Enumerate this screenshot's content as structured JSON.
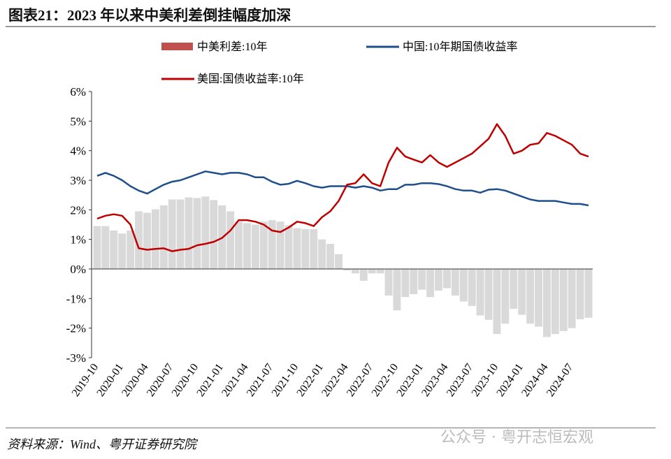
{
  "title": "图表21：2023 年以来中美利差倒挂幅度加深",
  "source": "资料来源：Wind、粤开证券研究院",
  "watermark": "公众号 · 粤开志恒宏观",
  "chart_data": {
    "type": "line+bar",
    "title": "",
    "ylim": [
      -3,
      6
    ],
    "yticks": [
      "6%",
      "5%",
      "4%",
      "3%",
      "2%",
      "1%",
      "0%",
      "-1%",
      "-2%",
      "-3%"
    ],
    "xticks": [
      "2019-10",
      "2020-01",
      "2020-04",
      "2020-07",
      "2020-10",
      "2021-01",
      "2021-04",
      "2021-07",
      "2021-10",
      "2022-01",
      "2022-04",
      "2022-07",
      "2022-10",
      "2023-01",
      "2023-04",
      "2023-07",
      "2023-10",
      "2024-01",
      "2024-04",
      "2024-07"
    ],
    "legend_position": "top",
    "x_start": "2019-10",
    "x_end": "2024-09",
    "x_step": "month",
    "series": [
      {
        "name": "中美利差:10年",
        "type": "bar",
        "color": "#c0504d",
        "draw_color": "#d9d9d9",
        "values": [
          1.45,
          1.45,
          1.3,
          1.2,
          1.3,
          1.95,
          1.9,
          2.02,
          2.15,
          2.35,
          2.35,
          2.42,
          2.4,
          2.45,
          2.33,
          2.15,
          1.95,
          1.6,
          1.55,
          1.5,
          1.6,
          1.65,
          1.6,
          1.48,
          1.38,
          1.35,
          1.35,
          1.0,
          0.85,
          0.5,
          -0.05,
          -0.15,
          -0.4,
          -0.15,
          -0.15,
          -0.9,
          -1.4,
          -0.95,
          -0.85,
          -0.7,
          -0.95,
          -0.73,
          -0.65,
          -0.9,
          -1.1,
          -1.25,
          -1.57,
          -1.72,
          -2.2,
          -1.85,
          -1.35,
          -1.55,
          -1.85,
          -1.95,
          -2.3,
          -2.2,
          -2.1,
          -2.0,
          -1.7,
          -1.65
        ]
      },
      {
        "name": "中国:10年期国债收益率",
        "type": "line",
        "color": "#1f4e8c",
        "values": [
          3.15,
          3.25,
          3.15,
          3.0,
          2.8,
          2.65,
          2.55,
          2.7,
          2.85,
          2.95,
          3.0,
          3.1,
          3.2,
          3.3,
          3.25,
          3.2,
          3.25,
          3.25,
          3.2,
          3.1,
          3.1,
          2.95,
          2.85,
          2.88,
          2.98,
          2.9,
          2.8,
          2.75,
          2.8,
          2.8,
          2.8,
          2.75,
          2.8,
          2.75,
          2.65,
          2.7,
          2.7,
          2.85,
          2.85,
          2.9,
          2.9,
          2.87,
          2.8,
          2.7,
          2.65,
          2.65,
          2.58,
          2.68,
          2.7,
          2.65,
          2.55,
          2.45,
          2.35,
          2.3,
          2.3,
          2.3,
          2.25,
          2.2,
          2.2,
          2.15
        ]
      },
      {
        "name": "美国:国债收益率:10年",
        "type": "line",
        "color": "#c00000",
        "values": [
          1.7,
          1.8,
          1.85,
          1.8,
          1.5,
          0.7,
          0.65,
          0.68,
          0.7,
          0.6,
          0.65,
          0.68,
          0.8,
          0.85,
          0.92,
          1.05,
          1.3,
          1.65,
          1.65,
          1.6,
          1.5,
          1.3,
          1.25,
          1.4,
          1.6,
          1.55,
          1.45,
          1.75,
          1.95,
          2.3,
          2.85,
          2.9,
          3.2,
          2.9,
          2.8,
          3.6,
          4.1,
          3.8,
          3.7,
          3.6,
          3.85,
          3.6,
          3.45,
          3.6,
          3.75,
          3.9,
          4.15,
          4.4,
          4.9,
          4.5,
          3.9,
          4.0,
          4.2,
          4.25,
          4.6,
          4.5,
          4.35,
          4.2,
          3.9,
          3.8
        ]
      }
    ]
  }
}
